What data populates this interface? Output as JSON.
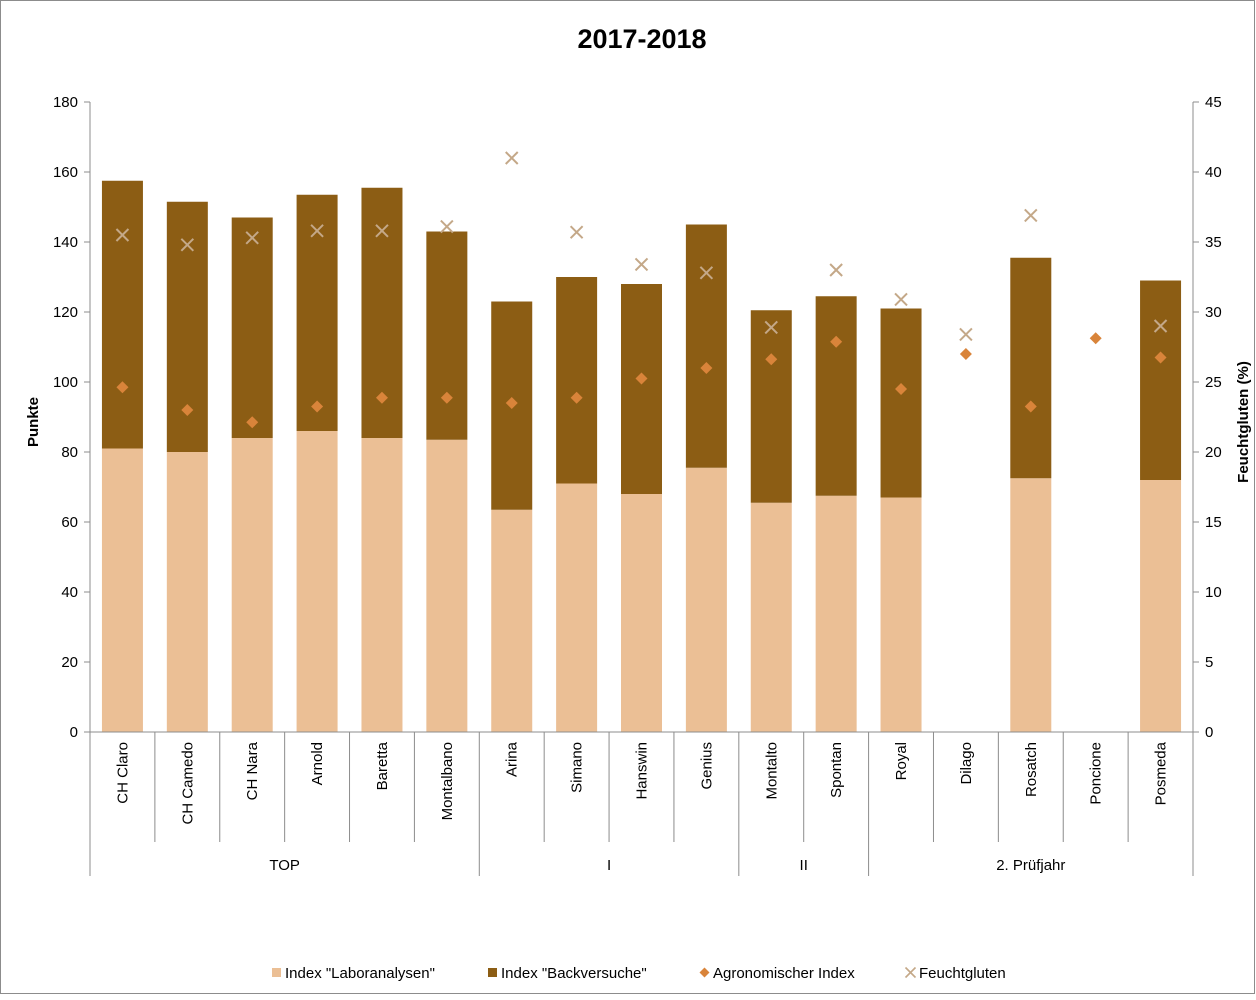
{
  "chart_data": {
    "type": "bar",
    "title": "2017-2018",
    "ylabel": "Punkte",
    "y2label": "Feuchtgluten (%)",
    "ylim": [
      0,
      180
    ],
    "y2lim": [
      0,
      45
    ],
    "yticks": [
      0,
      20,
      40,
      60,
      80,
      100,
      120,
      140,
      160,
      180
    ],
    "y2ticks": [
      0,
      5,
      10,
      15,
      20,
      25,
      30,
      35,
      40,
      45
    ],
    "categories": [
      "CH Claro",
      "CH Camedo",
      "CH Nara",
      "Arnold",
      "Baretta",
      "Montalbano",
      "Arina",
      "Simano",
      "Hanswin",
      "Genius",
      "Montalto",
      "Spontan",
      "Royal",
      "Dilago",
      "Rosatch",
      "Poncione",
      "Posmeda"
    ],
    "groups": [
      {
        "label": "TOP",
        "count": 6
      },
      {
        "label": "I",
        "count": 4
      },
      {
        "label": "II",
        "count": 2
      },
      {
        "label": "2. Prüfjahr",
        "count": 5
      }
    ],
    "grid": false,
    "legend_position": "bottom",
    "series": [
      {
        "name": "Index \"Laboranalysen\"",
        "kind": "stacked-bar",
        "axis": "left",
        "color": "#ebbf95",
        "values": [
          81,
          80,
          84,
          86,
          84,
          83.5,
          63.5,
          71,
          68,
          75.5,
          65.5,
          67.5,
          67,
          null,
          72.5,
          null,
          72
        ]
      },
      {
        "name": "Index \"Backversuche\"",
        "kind": "stacked-bar",
        "axis": "left",
        "color": "#8c5d14",
        "values": [
          76.5,
          71.5,
          63,
          67.5,
          71.5,
          59.5,
          59.5,
          59,
          60,
          69.5,
          55,
          57,
          54,
          null,
          63,
          null,
          57
        ]
      },
      {
        "name": "Agronomischer Index",
        "kind": "marker-diamond",
        "axis": "left",
        "color": "#d9843a",
        "values": [
          98.5,
          92,
          88.5,
          93,
          95.5,
          95.5,
          94,
          95.5,
          101,
          104,
          106.5,
          111.5,
          98,
          108,
          93,
          112.5,
          107
        ]
      },
      {
        "name": "Feuchtgluten",
        "kind": "marker-x",
        "axis": "right",
        "color": "#c4a888",
        "values": [
          35.5,
          34.8,
          35.3,
          35.8,
          35.8,
          36.1,
          41,
          35.7,
          33.4,
          32.8,
          28.9,
          33,
          30.9,
          28.4,
          36.9,
          null,
          29
        ]
      }
    ]
  }
}
